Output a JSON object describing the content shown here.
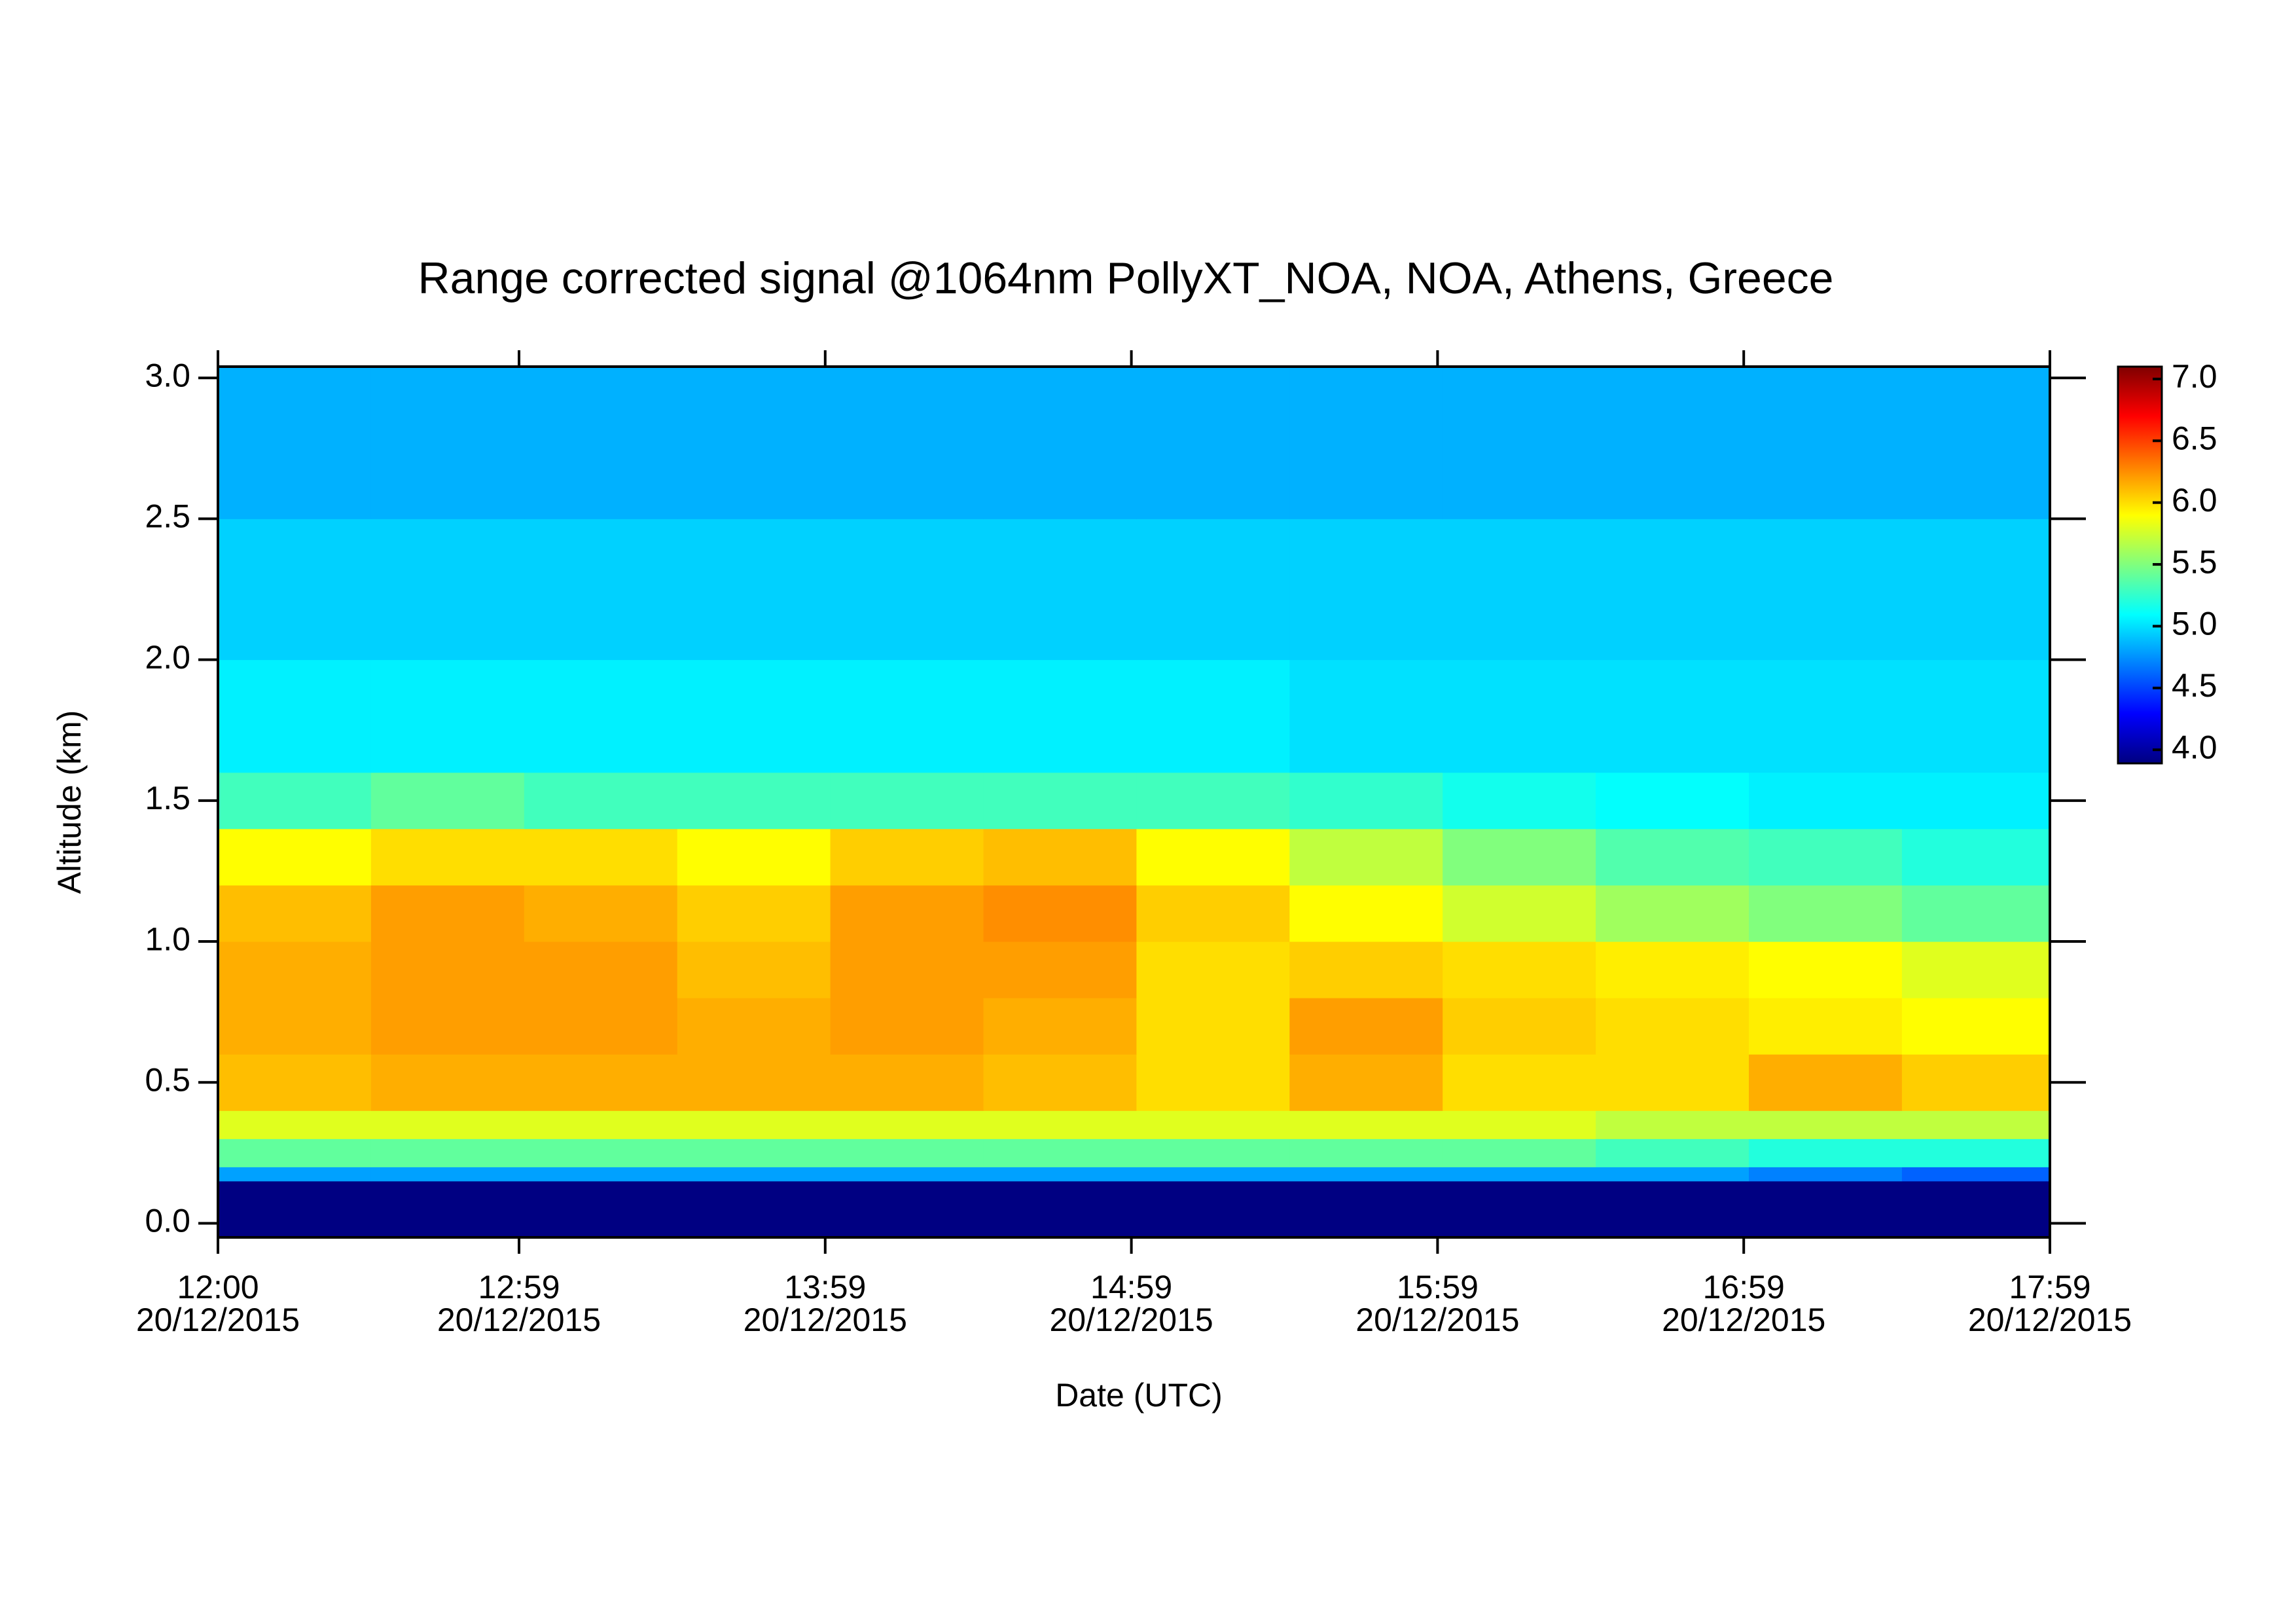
{
  "chart_data": {
    "type": "heatmap",
    "title": "Range corrected signal @1064nm  PollyXT_NOA, NOA, Athens, Greece",
    "xlabel": "Date (UTC)",
    "ylabel": "Altitude (km)",
    "x_bins": [
      "2015-12-20T12:00",
      "2015-12-20T12:30",
      "2015-12-20T13:00",
      "2015-12-20T13:30",
      "2015-12-20T14:00",
      "2015-12-20T14:30",
      "2015-12-20T15:00",
      "2015-12-20T15:30",
      "2015-12-20T16:00",
      "2015-12-20T16:30",
      "2015-12-20T17:00",
      "2015-12-20T17:30",
      "2015-12-20T17:59"
    ],
    "y_bins": [
      0,
      0.15,
      0.2,
      0.3,
      0.4,
      0.6,
      0.8,
      1.0,
      1.2,
      1.4,
      1.6,
      2.0,
      2.5,
      3.04
    ],
    "z": [
      [
        3.9,
        3.9,
        3.9,
        3.9,
        3.9,
        3.9,
        3.9,
        3.9,
        3.9,
        3.9,
        3.9,
        3.9
      ],
      [
        4.8,
        4.8,
        4.8,
        4.8,
        4.8,
        4.8,
        4.8,
        4.8,
        4.8,
        4.8,
        4.7,
        4.6
      ],
      [
        5.4,
        5.4,
        5.4,
        5.4,
        5.4,
        5.4,
        5.4,
        5.4,
        5.4,
        5.3,
        5.2,
        5.2
      ],
      [
        5.8,
        5.8,
        5.8,
        5.8,
        5.8,
        5.8,
        5.8,
        5.8,
        5.8,
        5.7,
        5.7,
        5.7
      ],
      [
        6.1,
        6.15,
        6.15,
        6.15,
        6.15,
        6.1,
        6.0,
        6.15,
        6.0,
        6.0,
        6.15,
        6.05
      ],
      [
        6.15,
        6.2,
        6.2,
        6.15,
        6.2,
        6.15,
        6.0,
        6.2,
        6.05,
        6.0,
        5.95,
        5.9
      ],
      [
        6.15,
        6.2,
        6.2,
        6.1,
        6.2,
        6.2,
        6.0,
        6.05,
        6.0,
        5.95,
        5.9,
        5.8
      ],
      [
        6.1,
        6.2,
        6.15,
        6.05,
        6.2,
        6.25,
        6.05,
        5.9,
        5.75,
        5.6,
        5.5,
        5.4
      ],
      [
        5.9,
        6.0,
        6.0,
        5.9,
        6.05,
        6.1,
        5.9,
        5.7,
        5.5,
        5.35,
        5.3,
        5.2
      ],
      [
        5.3,
        5.4,
        5.3,
        5.3,
        5.3,
        5.3,
        5.3,
        5.25,
        5.15,
        5.1,
        5.05,
        5.05
      ],
      [
        5.05,
        5.05,
        5.05,
        5.05,
        5.05,
        5.05,
        5.05,
        5.0,
        5.0,
        5.0,
        5.0,
        5.0
      ],
      [
        4.95,
        4.95,
        4.95,
        4.95,
        4.95,
        4.95,
        4.95,
        4.95,
        4.95,
        4.95,
        4.95,
        4.95
      ],
      [
        4.85,
        4.85,
        4.85,
        4.85,
        4.85,
        4.85,
        4.85,
        4.85,
        4.85,
        4.85,
        4.85,
        4.85
      ]
    ],
    "colormap": [
      "#00007f",
      "#0000ff",
      "#007fff",
      "#00ffff",
      "#7fff7f",
      "#ffff00",
      "#ff7f00",
      "#ff0000",
      "#7f0000"
    ],
    "clim": [
      3.89,
      7.1
    ],
    "cticks": [
      {
        "value": 4.0,
        "label": "4.0"
      },
      {
        "value": 4.5,
        "label": "4.5"
      },
      {
        "value": 5.0,
        "label": "5.0"
      },
      {
        "value": 5.5,
        "label": "5.5"
      },
      {
        "value": 6.0,
        "label": "6.0"
      },
      {
        "value": 6.5,
        "label": "6.5"
      },
      {
        "value": 7.0,
        "label": "7.0"
      }
    ],
    "xlim": [
      "2015-12-20T12:00",
      "2015-12-20T17:59"
    ],
    "xticks": [
      {
        "value": "2015-12-20T12:00",
        "label": [
          "12:00",
          "20/12/2015"
        ]
      },
      {
        "value": "2015-12-20T12:59",
        "label": [
          "12:59",
          "20/12/2015"
        ]
      },
      {
        "value": "2015-12-20T13:59",
        "label": [
          "13:59",
          "20/12/2015"
        ]
      },
      {
        "value": "2015-12-20T14:59",
        "label": [
          "14:59",
          "20/12/2015"
        ]
      },
      {
        "value": "2015-12-20T15:59",
        "label": [
          "15:59",
          "20/12/2015"
        ]
      },
      {
        "value": "2015-12-20T16:59",
        "label": [
          "16:59",
          "20/12/2015"
        ]
      },
      {
        "value": "2015-12-20T17:59",
        "label": [
          "17:59",
          "20/12/2015"
        ]
      }
    ],
    "ylim": [
      -0.05,
      3.04
    ],
    "yticks": [
      {
        "value": 0,
        "label": "0.0"
      },
      {
        "value": 0.5,
        "label": "0.5"
      },
      {
        "value": 1.0,
        "label": "1.0"
      },
      {
        "value": 1.5,
        "label": "1.5"
      },
      {
        "value": 2.0,
        "label": "2.0"
      },
      {
        "value": 2.5,
        "label": "2.5"
      },
      {
        "value": 3.0,
        "label": "3.0"
      }
    ]
  }
}
